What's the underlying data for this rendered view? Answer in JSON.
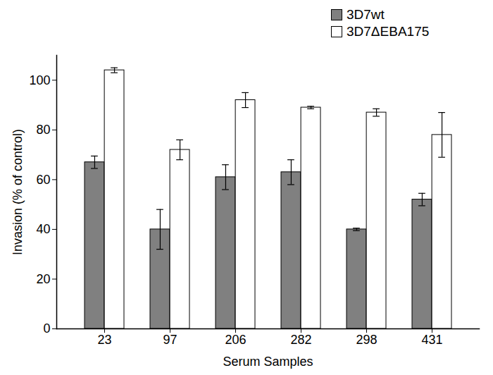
{
  "chart_data": {
    "type": "bar",
    "x_label": "Serum Samples",
    "y_label": "Invasion (% of control)",
    "categories": [
      "23",
      "97",
      "206",
      "282",
      "298",
      "431"
    ],
    "series": [
      {
        "name": "3D7wt",
        "color": "#808080",
        "values": [
          67,
          40,
          61,
          63,
          40,
          52
        ],
        "errors": [
          2.5,
          8,
          5,
          5,
          0.5,
          2.5
        ]
      },
      {
        "name": "3D7ΔEBA175",
        "color": "#ffffff",
        "values": [
          104,
          72,
          92,
          89,
          87,
          78
        ],
        "errors": [
          1,
          4,
          3,
          0.5,
          1.5,
          9
        ]
      }
    ],
    "ylim": [
      0,
      110
    ],
    "yticks": [
      0,
      20,
      40,
      60,
      80,
      100
    ],
    "legend": "top-right",
    "grid": false
  }
}
